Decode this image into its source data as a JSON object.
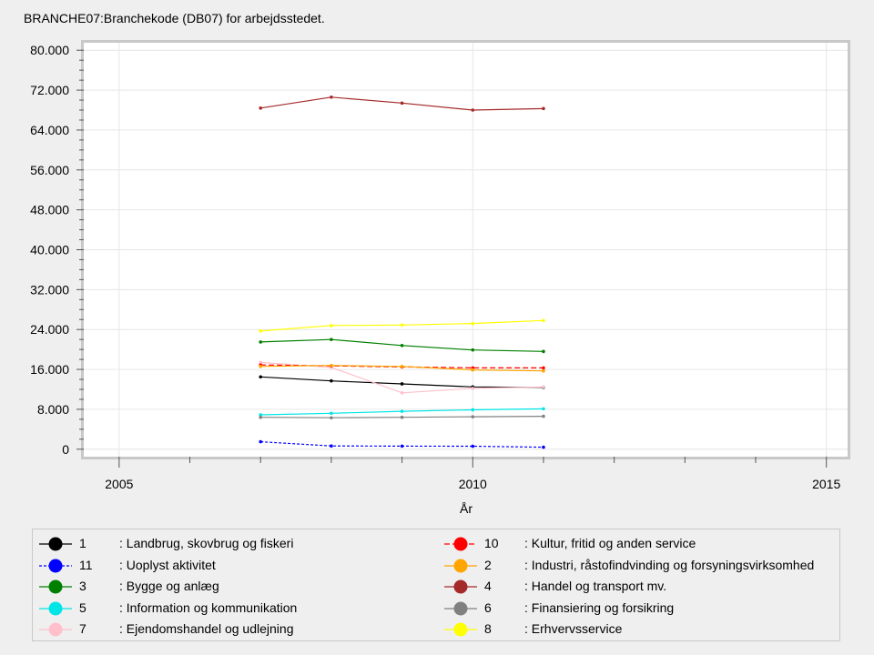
{
  "chart_data": {
    "type": "line",
    "title": "BRANCHE07:Branchekode (DB07) for arbejdsstedet.",
    "xlabel": "År",
    "ylabel": "",
    "xlim": [
      2004.5,
      2015.3
    ],
    "ylim": [
      -1500,
      81500
    ],
    "x_ticks": [
      2005,
      2010,
      2015
    ],
    "x_tick_labels": [
      "2005",
      "2010",
      "2015"
    ],
    "y_ticks": [
      0,
      8000,
      16000,
      24000,
      32000,
      40000,
      48000,
      56000,
      64000,
      72000,
      80000
    ],
    "y_tick_labels": [
      "0",
      "8.000",
      "16.000",
      "24.000",
      "32.000",
      "40.000",
      "48.000",
      "56.000",
      "64.000",
      "72.000",
      "80.000"
    ],
    "grid": true,
    "legend_position": "bottom",
    "x": [
      2007,
      2008,
      2009,
      2010,
      2011
    ],
    "series": [
      {
        "code": "1",
        "name": ": Landbrug, skovbrug og fiskeri",
        "color": "#000000",
        "dash": "",
        "values": [
          14500,
          13700,
          13100,
          12500,
          12400
        ]
      },
      {
        "code": "11",
        "name": ": Uoplyst aktivitet",
        "color": "#0000ff",
        "dash": "3,2",
        "values": [
          1500,
          650,
          620,
          600,
          400
        ]
      },
      {
        "code": "3",
        "name": ": Bygge og anlæg",
        "color": "#008000",
        "dash": "",
        "values": [
          21500,
          22000,
          20800,
          19900,
          19600
        ]
      },
      {
        "code": "5",
        "name": ": Information og kommunikation",
        "color": "#00e5e5",
        "dash": "",
        "values": [
          6900,
          7200,
          7600,
          7900,
          8100
        ]
      },
      {
        "code": "7",
        "name": ": Ejendomshandel og udlejning",
        "color": "#ffc0cb",
        "dash": "",
        "values": [
          17400,
          16400,
          11300,
          12200,
          12500
        ]
      },
      {
        "code": "10",
        "name": ": Kultur, fritid og anden service",
        "color": "#ff0000",
        "dash": "6,3",
        "values": [
          16900,
          16700,
          16500,
          16300,
          16300
        ]
      },
      {
        "code": "2",
        "name": ": Industri, råstofindvinding og forsyningsvirksomhed",
        "color": "#ffa500",
        "dash": "",
        "values": [
          16600,
          16800,
          16600,
          15900,
          15700
        ]
      },
      {
        "code": "4",
        "name": ": Handel og transport mv.",
        "color": "#a52a2a",
        "dash": "",
        "values": [
          68400,
          70600,
          69400,
          68000,
          68300
        ]
      },
      {
        "code": "6",
        "name": ": Finansiering og forsikring",
        "color": "#808080",
        "dash": "",
        "values": [
          6400,
          6300,
          6400,
          6500,
          6600
        ]
      },
      {
        "code": "8",
        "name": ": Erhvervsservice",
        "color": "#ffff00",
        "dash": "",
        "values": [
          23700,
          24800,
          24900,
          25200,
          25800
        ]
      }
    ],
    "legend_order": [
      0,
      5,
      1,
      6,
      2,
      7,
      3,
      8,
      4,
      9
    ]
  }
}
